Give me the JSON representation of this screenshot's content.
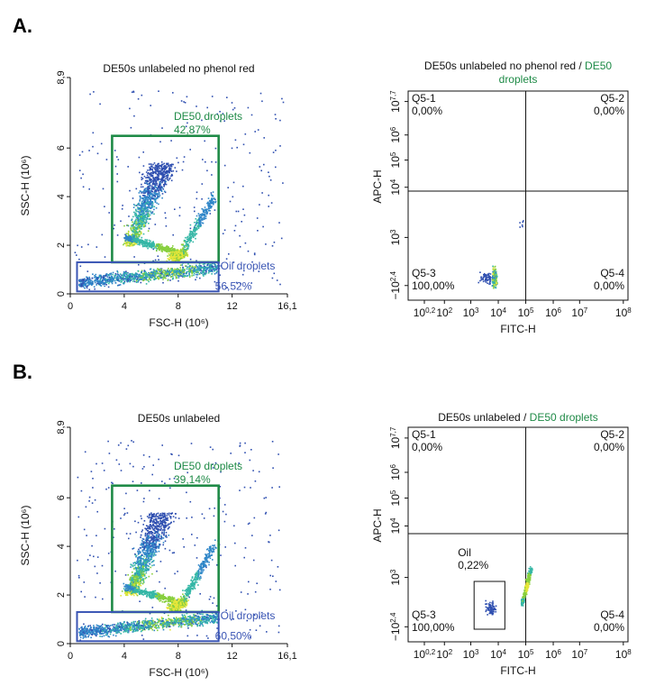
{
  "figure": {
    "panel_a_label": "A.",
    "panel_b_label": "B."
  },
  "colors": {
    "green": "#1e8a46",
    "blue": "#3a55b4",
    "black": "#111111"
  },
  "chart_data": [
    {
      "id": "A-scatter",
      "type": "scatter",
      "title": "DE50s unlabeled no phenol red",
      "xlabel": "FSC-H",
      "xunit": "(10⁶)",
      "ylabel": "SSC-H",
      "yunit": "(10⁶)",
      "xlim": [
        0,
        16.1
      ],
      "ylim": [
        0,
        8.9
      ],
      "xticks": [
        "0",
        "4",
        "8",
        "12",
        "16,1"
      ],
      "xtick_values": [
        0,
        4,
        8,
        12,
        16.1
      ],
      "yticks": [
        "0",
        "2",
        "4",
        "6",
        "8,9"
      ],
      "ytick_values": [
        0,
        2,
        4,
        6,
        8.9
      ],
      "gates": [
        {
          "name": "DE50 droplets",
          "percent": "42,87%",
          "color": "green",
          "x": [
            3.1,
            11
          ],
          "y": [
            1.3,
            6.5
          ]
        },
        {
          "name": "Oil droplets",
          "percent": "56,52%",
          "color": "blue",
          "x": [
            0.5,
            11
          ],
          "y": [
            0.1,
            1.3
          ]
        }
      ]
    },
    {
      "id": "A-quadrant",
      "type": "scatter",
      "title": "DE50s unlabeled no phenol red / ",
      "title_highlight": "DE50 droplets",
      "xlabel": "FITC-H",
      "ylabel": "APC-H",
      "quadrants": [
        {
          "name": "Q5-1",
          "percent": "0,00%"
        },
        {
          "name": "Q5-2",
          "percent": "0,00%"
        },
        {
          "name": "Q5-3",
          "percent": "100,00%"
        },
        {
          "name": "Q5-4",
          "percent": "0,00%"
        }
      ],
      "oil_gate": null
    },
    {
      "id": "B-scatter",
      "type": "scatter",
      "title": "DE50s unlabeled",
      "xlabel": "FSC-H",
      "xunit": "(10⁶)",
      "ylabel": "SSC-H",
      "yunit": "(10⁶)",
      "xlim": [
        0,
        16.1
      ],
      "ylim": [
        0,
        8.9
      ],
      "xticks": [
        "0",
        "4",
        "8",
        "12",
        "16,1"
      ],
      "xtick_values": [
        0,
        4,
        8,
        12,
        16.1
      ],
      "yticks": [
        "0",
        "2",
        "4",
        "6",
        "8,9"
      ],
      "ytick_values": [
        0,
        2,
        4,
        6,
        8.9
      ],
      "gates": [
        {
          "name": "DE50 droplets",
          "percent": "39,14%",
          "color": "green",
          "x": [
            3.1,
            11
          ],
          "y": [
            1.3,
            6.5
          ]
        },
        {
          "name": "Oil droplets",
          "percent": "60,50%",
          "color": "blue",
          "x": [
            0.5,
            11
          ],
          "y": [
            0.1,
            1.3
          ]
        }
      ]
    },
    {
      "id": "B-quadrant",
      "type": "scatter",
      "title": "DE50s unlabeled / ",
      "title_highlight": "DE50 droplets",
      "xlabel": "FITC-H",
      "ylabel": "APC-H",
      "quadrants": [
        {
          "name": "Q5-1",
          "percent": "0,00%"
        },
        {
          "name": "Q5-2",
          "percent": "0,00%"
        },
        {
          "name": "Q5-3",
          "percent": "100,00%"
        },
        {
          "name": "Q5-4",
          "percent": "0,00%"
        }
      ],
      "oil_gate": {
        "name": "Oil",
        "percent": "0,22%"
      }
    }
  ]
}
